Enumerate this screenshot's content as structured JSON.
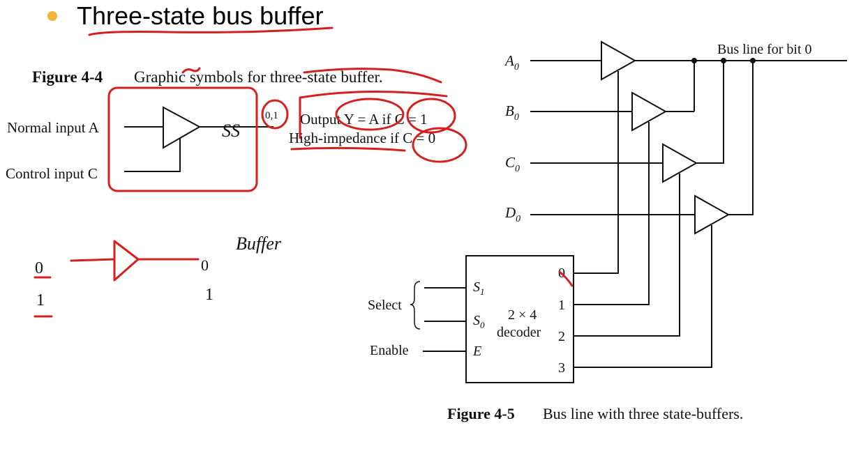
{
  "slide": {
    "bullet_color": "#f2b53a",
    "title": "Three-state bus buffer"
  },
  "figure_4_4": {
    "number": "Figure 4-4",
    "caption": "Graphic symbols for three-state buffer.",
    "normal_input_label": "Normal input A",
    "control_input_label": "Control input C",
    "output_line1": "Output Y = A if C = 1",
    "output_line2": "High-impedance if C = 0"
  },
  "figure_4_5": {
    "number": "Figure 4-5",
    "caption": "Bus line with three state-buffers.",
    "bus_label": "Bus line for bit 0",
    "inputs": [
      {
        "letter": "A",
        "sub": "0"
      },
      {
        "letter": "B",
        "sub": "0"
      },
      {
        "letter": "C",
        "sub": "0"
      },
      {
        "letter": "D",
        "sub": "0"
      }
    ],
    "select_label": "Select",
    "enable_label": "Enable",
    "decoder_line1": "2 × 4",
    "decoder_line2": "decoder",
    "decoder_inputs": [
      {
        "letter": "S",
        "sub": "1"
      },
      {
        "letter": "S",
        "sub": "0"
      },
      {
        "letter": "E",
        "sub": ""
      }
    ],
    "decoder_outputs": [
      "0",
      "1",
      "2",
      "3"
    ]
  },
  "annotations": {
    "ink_color": "#d61f1f",
    "buffer_word": "Buffer",
    "note_01": "0,1",
    "ss_mark": "SS",
    "values_left": [
      "0",
      "1"
    ],
    "values_right": [
      "0",
      "1"
    ]
  }
}
